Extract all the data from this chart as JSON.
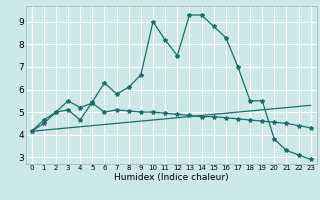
{
  "background_color": "#cce8e8",
  "grid_color": "#ffffff",
  "line_color": "#1a6e6e",
  "marker_style": "*",
  "marker_size": 3,
  "xlabel": "Humidex (Indice chaleur)",
  "xlim": [
    -0.5,
    23.5
  ],
  "ylim": [
    2.7,
    9.7
  ],
  "xticks": [
    0,
    1,
    2,
    3,
    4,
    5,
    6,
    7,
    8,
    9,
    10,
    11,
    12,
    13,
    14,
    15,
    16,
    17,
    18,
    19,
    20,
    21,
    22,
    23
  ],
  "yticks": [
    3,
    4,
    5,
    6,
    7,
    8,
    9
  ],
  "series1_x": [
    0,
    1,
    2,
    3,
    4,
    5,
    6,
    7,
    8,
    9,
    10,
    11,
    12,
    13,
    14,
    15,
    16,
    17,
    18,
    19,
    20,
    21,
    22,
    23
  ],
  "series1_y": [
    4.15,
    4.65,
    5.0,
    5.1,
    4.65,
    5.45,
    6.3,
    5.8,
    6.1,
    6.65,
    9.0,
    8.2,
    7.5,
    9.3,
    9.3,
    8.8,
    8.3,
    7.0,
    5.5,
    5.5,
    3.8,
    3.3,
    3.1,
    2.9
  ],
  "series2_x": [
    0,
    1,
    2,
    3,
    4,
    5,
    6,
    7,
    8,
    9,
    10,
    11,
    12,
    13,
    14,
    15,
    16,
    17,
    18,
    19,
    20,
    21,
    22,
    23
  ],
  "series2_y": [
    4.15,
    4.5,
    5.0,
    5.5,
    5.2,
    5.4,
    5.0,
    5.1,
    5.05,
    5.0,
    5.0,
    4.95,
    4.9,
    4.85,
    4.8,
    4.8,
    4.75,
    4.7,
    4.65,
    4.6,
    4.55,
    4.5,
    4.4,
    4.3
  ],
  "series3_x": [
    0,
    23
  ],
  "series3_y": [
    4.15,
    5.3
  ]
}
